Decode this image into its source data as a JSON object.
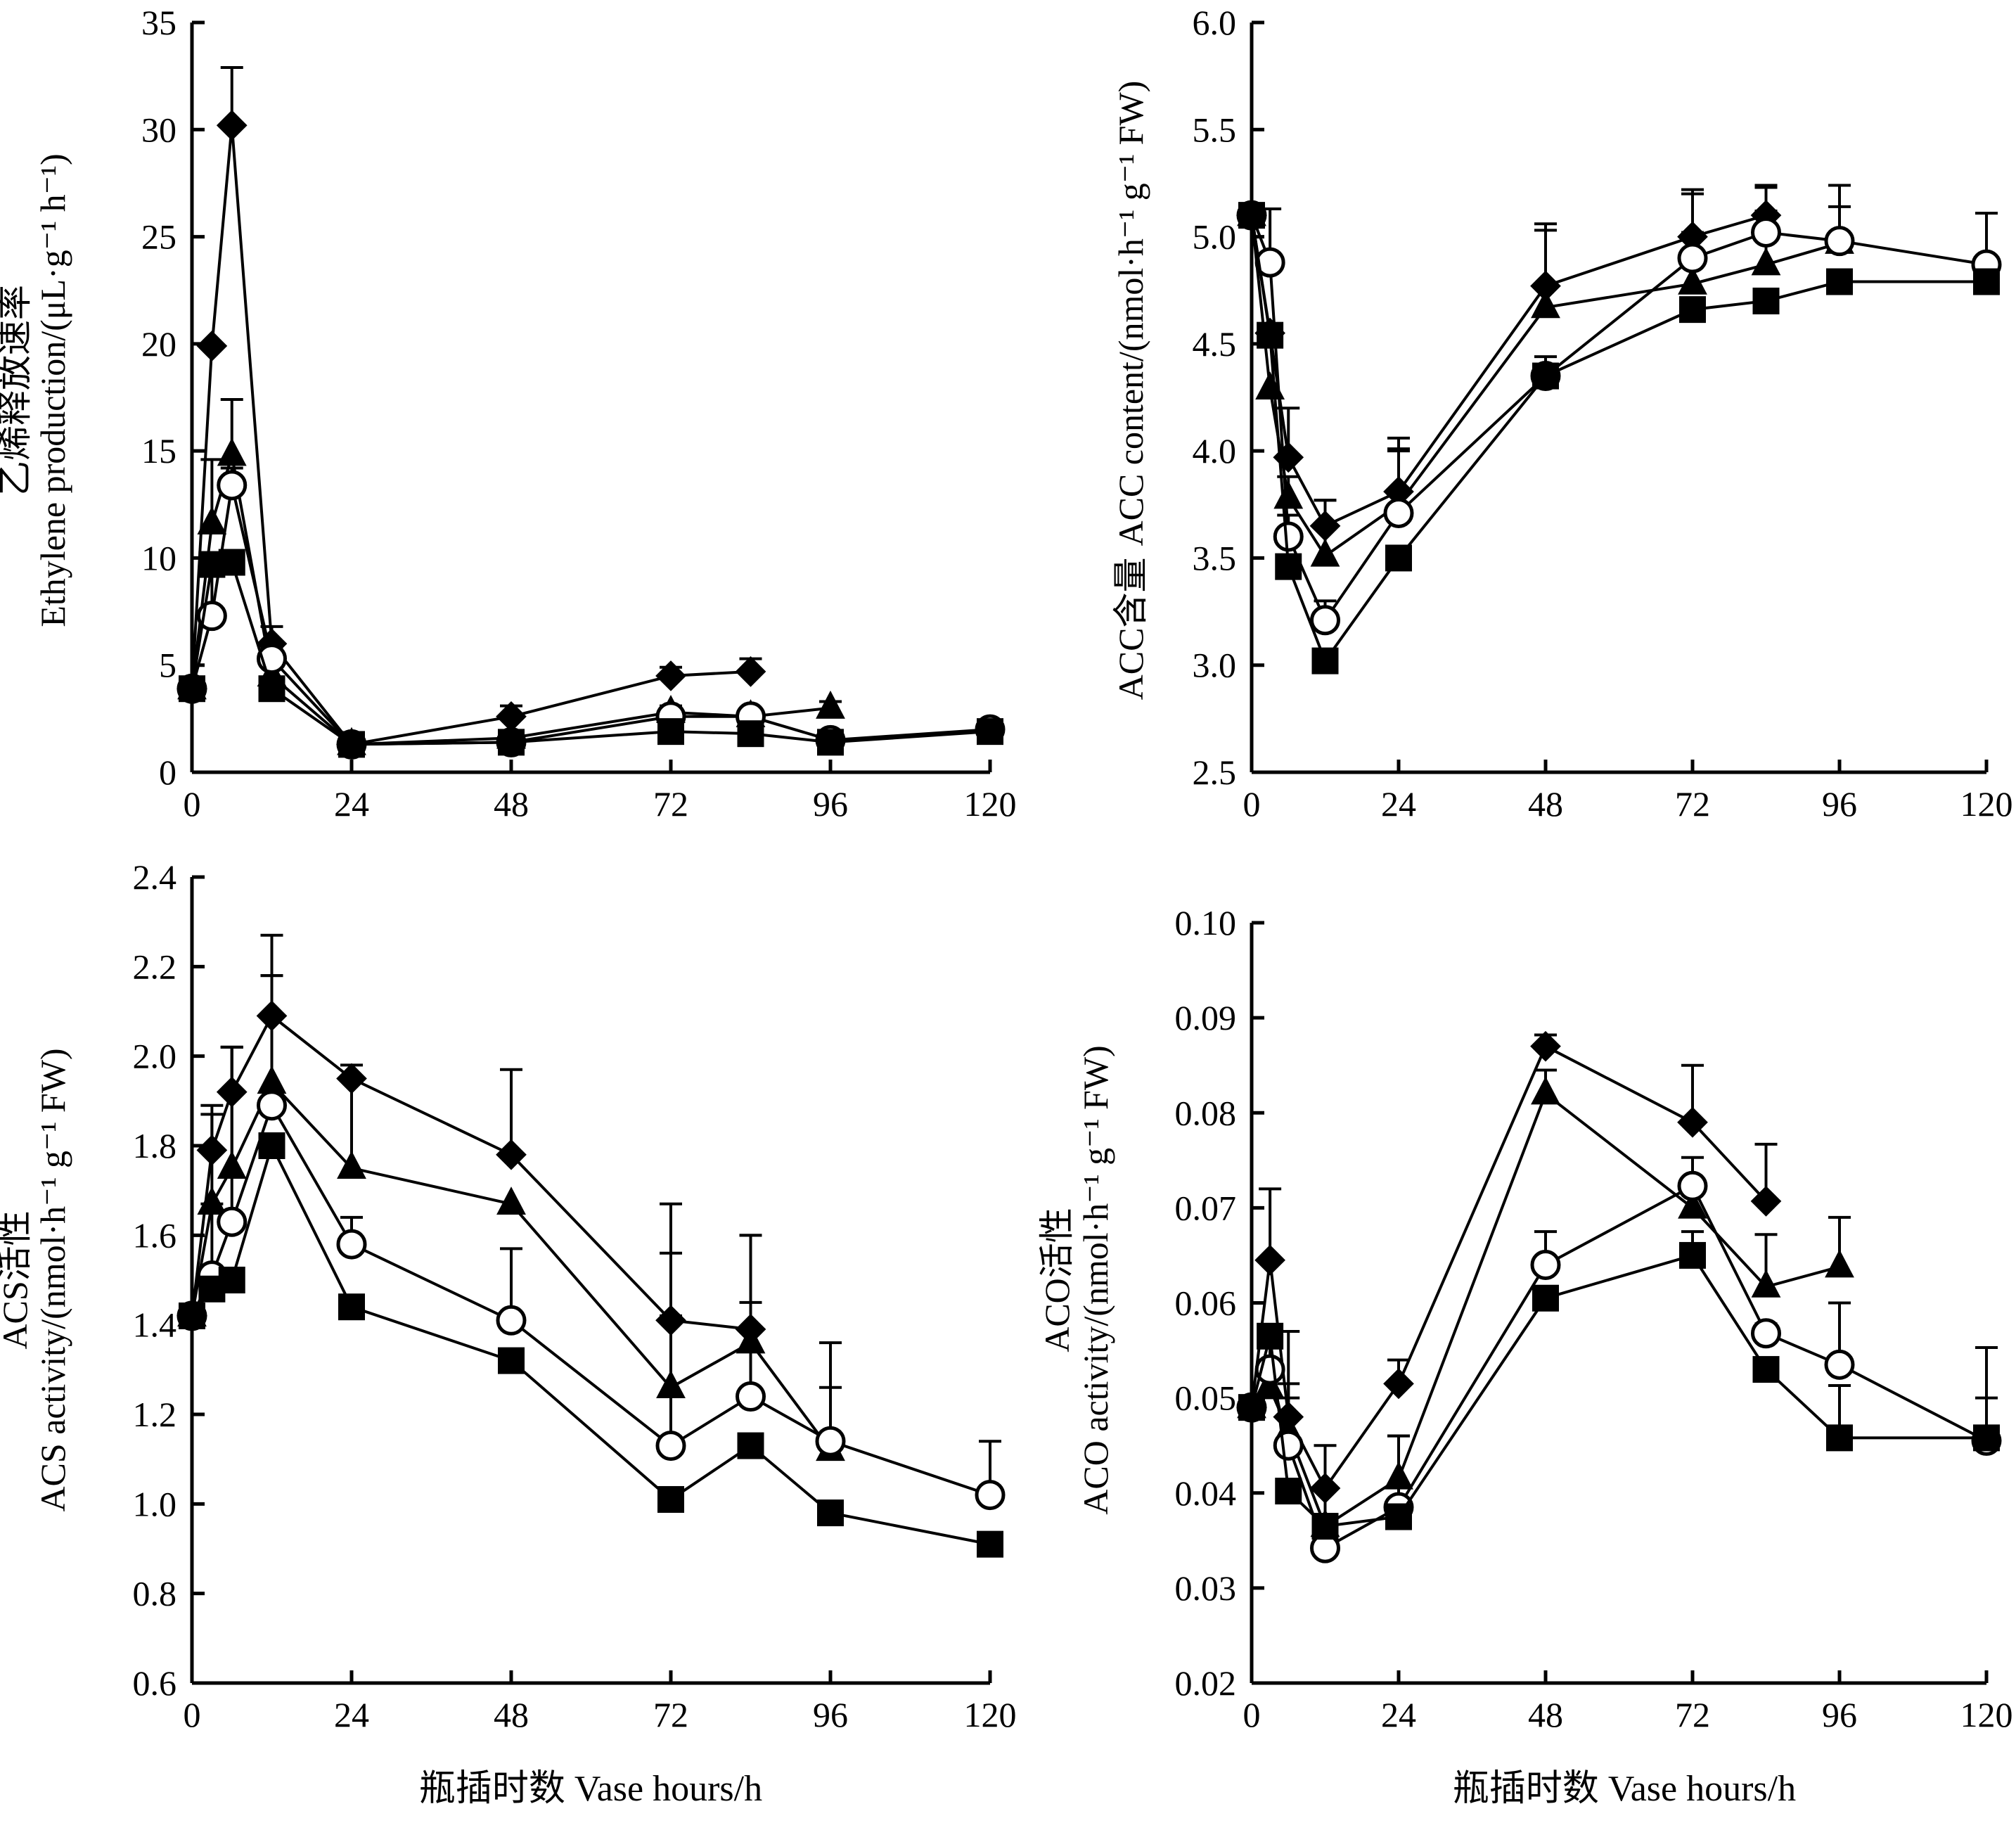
{
  "figure": {
    "xlabel": "瓶插时数  Vase hours/h",
    "series_markers": [
      "filled-diamond",
      "filled-triangle",
      "open-circle",
      "filled-square"
    ]
  },
  "chart_data": [
    {
      "id": "ethylene",
      "type": "line",
      "ylabel_cn": "乙烯释放速率",
      "ylabel_en": "Ethylene production/(μL·g⁻¹ h⁻¹)",
      "xlabel": "",
      "xlim": [
        0,
        120
      ],
      "ylim": [
        0,
        35
      ],
      "xticks": [
        0,
        24,
        48,
        72,
        96,
        120
      ],
      "yticks": [
        0,
        5,
        10,
        15,
        20,
        25,
        30,
        35
      ],
      "ytick_labels": [
        "0",
        "5",
        "10",
        "15",
        "20",
        "25",
        "30",
        "35"
      ],
      "grid": false,
      "series": [
        {
          "name": "diamond",
          "marker": "diamond",
          "x": [
            0,
            3,
            6,
            12,
            24,
            48,
            72,
            84
          ],
          "values": [
            3.9,
            19.9,
            30.2,
            6.0,
            1.3,
            2.6,
            4.5,
            4.7
          ],
          "err": [
            0,
            0,
            2.7,
            0.8,
            0,
            0.5,
            0.4,
            0.6
          ]
        },
        {
          "name": "triangle",
          "marker": "triangle",
          "x": [
            0,
            3,
            6,
            12,
            24,
            48,
            72,
            84,
            96
          ],
          "values": [
            3.9,
            11.6,
            14.8,
            4.5,
            1.3,
            1.6,
            2.8,
            2.6,
            3.0
          ],
          "err": [
            0,
            3.0,
            2.6,
            0.5,
            0,
            0.3,
            0.3,
            0.3,
            0.3
          ]
        },
        {
          "name": "circle",
          "marker": "circle",
          "x": [
            0,
            3,
            6,
            12,
            24,
            48,
            72,
            84,
            96,
            120
          ],
          "values": [
            3.9,
            7.3,
            13.4,
            5.3,
            1.3,
            1.4,
            2.6,
            2.6,
            1.5,
            2.0
          ],
          "err": [
            0,
            2.0,
            0.8,
            0.5,
            0,
            0.2,
            0.3,
            0.3,
            0.2,
            0.2
          ]
        },
        {
          "name": "square",
          "marker": "square",
          "x": [
            0,
            3,
            6,
            12,
            24,
            48,
            72,
            84,
            96,
            120
          ],
          "values": [
            3.9,
            9.7,
            9.8,
            3.9,
            1.3,
            1.4,
            1.9,
            1.8,
            1.4,
            1.9
          ],
          "err": [
            0,
            0,
            0,
            0,
            0,
            0,
            0,
            0,
            0,
            0
          ]
        }
      ]
    },
    {
      "id": "acc",
      "type": "line",
      "ylabel_cn": "ACC含量",
      "ylabel_en": "ACC content/(nmol·h⁻¹ g⁻¹ FW)",
      "xlabel": "",
      "xlim": [
        0,
        120
      ],
      "ylim": [
        2.5,
        6.0
      ],
      "xticks": [
        0,
        24,
        48,
        72,
        96,
        120
      ],
      "yticks": [
        2.5,
        3.0,
        3.5,
        4.0,
        4.5,
        5.0,
        5.5,
        6.0
      ],
      "ytick_labels": [
        "2.5",
        "3.0",
        "3.5",
        "4.0",
        "4.5",
        "5.0",
        "5.5",
        "6.0"
      ],
      "grid": false,
      "series": [
        {
          "name": "diamond",
          "marker": "diamond",
          "x": [
            0,
            3,
            6,
            12,
            24,
            48,
            72,
            84
          ],
          "values": [
            5.1,
            4.55,
            3.97,
            3.65,
            3.81,
            4.77,
            5.0,
            5.1
          ],
          "err": [
            0,
            0,
            0.23,
            0.12,
            0.25,
            0.29,
            0.22,
            0.14
          ]
        },
        {
          "name": "triangle",
          "marker": "triangle",
          "x": [
            0,
            3,
            6,
            12,
            24,
            48,
            72,
            84,
            96
          ],
          "values": [
            5.1,
            4.29,
            3.78,
            3.51,
            3.75,
            4.67,
            4.78,
            4.87,
            4.97
          ],
          "err": [
            0,
            0,
            0.1,
            0.26,
            0.25,
            0.36,
            0.24,
            0.25,
            0.17
          ]
        },
        {
          "name": "circle",
          "marker": "circle",
          "x": [
            0,
            3,
            6,
            12,
            24,
            48,
            72,
            84,
            96,
            120
          ],
          "values": [
            5.1,
            4.88,
            3.6,
            3.21,
            3.71,
            4.35,
            4.9,
            5.02,
            4.98,
            4.87
          ],
          "err": [
            0,
            0.25,
            0.1,
            0.09,
            0.3,
            0.09,
            0.3,
            0.21,
            0.26,
            0.24
          ]
        },
        {
          "name": "square",
          "marker": "square",
          "x": [
            0,
            3,
            6,
            12,
            24,
            48,
            72,
            84,
            96,
            120
          ],
          "values": [
            5.1,
            4.54,
            3.46,
            3.02,
            3.5,
            4.35,
            4.66,
            4.7,
            4.79,
            4.79
          ],
          "err": [
            0,
            0,
            0,
            0,
            0,
            0,
            0,
            0,
            0,
            0
          ]
        }
      ]
    },
    {
      "id": "acs",
      "type": "line",
      "ylabel_cn": "ACS活性",
      "ylabel_en": "ACS activity/(nmol·h⁻¹ g⁻¹ FW)",
      "xlabel": "瓶插时数  Vase hours/h",
      "xlim": [
        0,
        120
      ],
      "ylim": [
        0.6,
        2.4
      ],
      "xticks": [
        0,
        24,
        48,
        72,
        96,
        120
      ],
      "yticks": [
        0.6,
        0.8,
        1.0,
        1.2,
        1.4,
        1.6,
        1.8,
        2.0,
        2.2,
        2.4
      ],
      "ytick_labels": [
        "0.6",
        "0.8",
        "1.0",
        "1.2",
        "1.4",
        "1.6",
        "1.8",
        "2.0",
        "2.2",
        "2.4"
      ],
      "grid": false,
      "series": [
        {
          "name": "diamond",
          "marker": "diamond",
          "x": [
            0,
            3,
            6,
            12,
            24,
            48,
            72,
            84
          ],
          "values": [
            1.42,
            1.79,
            1.92,
            2.09,
            1.95,
            1.78,
            1.41,
            1.39
          ],
          "err": [
            0,
            0.1,
            0.1,
            0.18,
            0.03,
            0.19,
            0.26,
            0.21
          ]
        },
        {
          "name": "triangle",
          "marker": "triangle",
          "x": [
            0,
            3,
            6,
            12,
            24,
            48,
            72,
            84,
            96
          ],
          "values": [
            1.42,
            1.67,
            1.75,
            1.94,
            1.75,
            1.67,
            1.26,
            1.36,
            1.12
          ],
          "err": [
            0,
            0.2,
            0.27,
            0.24,
            0.2,
            0,
            0.3,
            0.24,
            0.24
          ]
        },
        {
          "name": "circle",
          "marker": "circle",
          "x": [
            0,
            3,
            6,
            12,
            24,
            48,
            72,
            84,
            96,
            120
          ],
          "values": [
            1.42,
            1.51,
            1.63,
            1.89,
            1.58,
            1.41,
            1.13,
            1.24,
            1.14,
            1.02
          ],
          "err": [
            0,
            0.16,
            0.39,
            0.29,
            0.06,
            0.16,
            0.29,
            0.21,
            0.12,
            0.12
          ]
        },
        {
          "name": "square",
          "marker": "square",
          "x": [
            0,
            3,
            6,
            12,
            24,
            48,
            72,
            84,
            96,
            120
          ],
          "values": [
            1.42,
            1.48,
            1.5,
            1.8,
            1.44,
            1.32,
            1.01,
            1.13,
            0.98,
            0.91
          ],
          "err": [
            0,
            0,
            0,
            0,
            0,
            0,
            0,
            0,
            0,
            0
          ]
        }
      ]
    },
    {
      "id": "aco",
      "type": "line",
      "ylabel_cn": "ACO活性",
      "ylabel_en": "ACO activity/(nmol·h⁻¹ g⁻¹ FW)",
      "xlabel": "瓶插时数  Vase hours/h",
      "xlim": [
        0,
        120
      ],
      "ylim": [
        0.02,
        0.1
      ],
      "xticks": [
        0,
        24,
        48,
        72,
        96,
        120
      ],
      "yticks": [
        0.02,
        0.03,
        0.04,
        0.05,
        0.06,
        0.07,
        0.08,
        0.09,
        0.1
      ],
      "ytick_labels": [
        "0.02",
        "0.03",
        "0.04",
        "0.05",
        "0.06",
        "0.07",
        "0.08",
        "0.09",
        "0.10"
      ],
      "grid": false,
      "series": [
        {
          "name": "diamond",
          "marker": "diamond",
          "x": [
            0,
            3,
            6,
            12,
            24,
            48,
            72,
            84
          ],
          "values": [
            0.049,
            0.0645,
            0.048,
            0.0405,
            0.0515,
            0.087,
            0.079,
            0.0707
          ],
          "err": [
            0,
            0.0075,
            0.009,
            0.0045,
            0.0025,
            0.0012,
            0.006,
            0.006
          ]
        },
        {
          "name": "triangle",
          "marker": "triangle",
          "x": [
            0,
            3,
            6,
            12,
            24,
            48,
            72,
            84,
            96
          ],
          "values": [
            0.049,
            0.051,
            0.0465,
            0.0365,
            0.0415,
            0.082,
            0.07,
            0.0617,
            0.0638
          ],
          "err": [
            0,
            0.0045,
            0.005,
            0.004,
            0.0045,
            0.0025,
            0.0,
            0.0055,
            0.0052
          ]
        },
        {
          "name": "circle",
          "marker": "circle",
          "x": [
            0,
            3,
            6,
            12,
            24,
            48,
            72,
            84,
            96,
            120
          ],
          "values": [
            0.049,
            0.053,
            0.045,
            0.0342,
            0.0385,
            0.064,
            0.0723,
            0.0568,
            0.0535,
            0.0455
          ],
          "err": [
            0,
            0.004,
            0.005,
            0.002,
            0.0075,
            0.0035,
            0.003,
            0.001,
            0.0065,
            0.0045
          ]
        },
        {
          "name": "square",
          "marker": "square",
          "x": [
            0,
            3,
            6,
            12,
            24,
            48,
            72,
            84,
            96,
            120
          ],
          "values": [
            0.049,
            0.0565,
            0.0402,
            0.0365,
            0.0375,
            0.0605,
            0.065,
            0.053,
            0.0458,
            0.0458
          ],
          "err": [
            0,
            0,
            0,
            0,
            0,
            0,
            0.0025,
            0,
            0.0055,
            0.0095
          ]
        }
      ]
    }
  ]
}
